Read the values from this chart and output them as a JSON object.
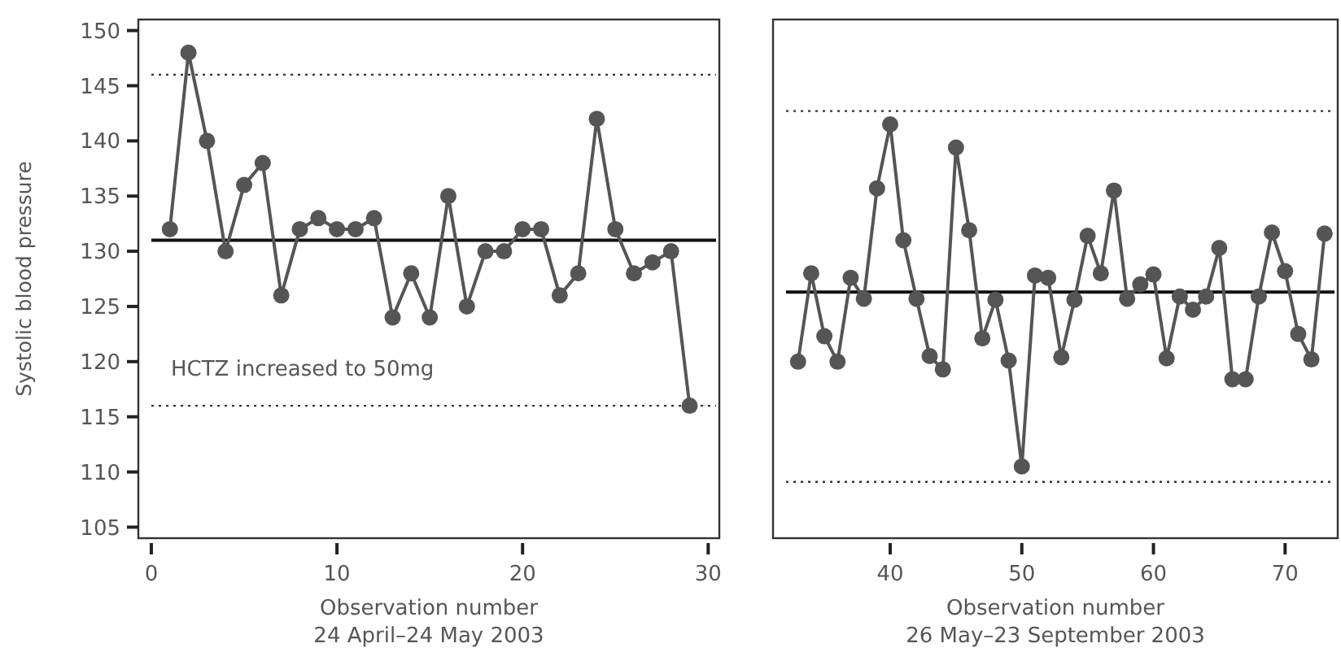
{
  "chart_data": [
    {
      "type": "line",
      "xlabel": "Observation number\n24 April–24 May 2003",
      "ylabel": "Systolic blood pressure",
      "marker": "circle",
      "line_style": "solid",
      "grid": false,
      "x": [
        1,
        2,
        3,
        4,
        5,
        6,
        7,
        8,
        9,
        10,
        11,
        12,
        13,
        14,
        15,
        16,
        17,
        18,
        19,
        20,
        21,
        22,
        23,
        24,
        25,
        26,
        27,
        28,
        29
      ],
      "series": [
        {
          "color": "#555555",
          "values": [
            132,
            148,
            140,
            130,
            136,
            138,
            126,
            132,
            133,
            132,
            132,
            133,
            124,
            128,
            124,
            135,
            125,
            130,
            130,
            132,
            132,
            126,
            128,
            142,
            132,
            128,
            129,
            130,
            116
          ]
        }
      ],
      "xlim": [
        -0.7,
        30.6
      ],
      "ylim": [
        104,
        151
      ],
      "xticks": [
        0,
        10,
        20,
        30
      ],
      "yticks": [
        105,
        110,
        115,
        120,
        125,
        130,
        135,
        140,
        145,
        150
      ],
      "ref_lines": [
        {
          "axis": "y",
          "value": 131,
          "color": "#111111",
          "line_style": "solid"
        },
        {
          "axis": "y",
          "value": 146,
          "color": "#333333",
          "line_style": "dotted"
        },
        {
          "axis": "y",
          "value": 116,
          "color": "#333333",
          "line_style": "dotted"
        }
      ],
      "annotations": [
        "HCTZ increased to 50mg"
      ]
    },
    {
      "type": "line",
      "xlabel": "Observation number\n26 May–23 September 2003",
      "marker": "circle",
      "line_style": "solid",
      "grid": false,
      "tick_labels": "x",
      "x": [
        33,
        34,
        35,
        36,
        37,
        38,
        39,
        40,
        41,
        42,
        43,
        44,
        45,
        46,
        47,
        48,
        49,
        50,
        51,
        52,
        53,
        54,
        55,
        56,
        57,
        58,
        59,
        60,
        61,
        62,
        63,
        64,
        65,
        66,
        67,
        68,
        69,
        70,
        71,
        72,
        73
      ],
      "series": [
        {
          "color": "#555555",
          "values": [
            120,
            128,
            122.3,
            120,
            127.6,
            125.7,
            135.7,
            141.5,
            131,
            125.7,
            120.5,
            119.3,
            139.4,
            131.9,
            122.1,
            125.6,
            120.1,
            110.5,
            127.8,
            127.6,
            120.4,
            125.6,
            131.4,
            128,
            135.5,
            125.7,
            127,
            127.9,
            120.3,
            125.9,
            124.7,
            125.9,
            130.3,
            118.4,
            118.4,
            125.9,
            131.7,
            128.2,
            122.5,
            120.2,
            131.6
          ]
        }
      ],
      "xlim": [
        31.1,
        74
      ],
      "ylim": [
        104,
        151
      ],
      "xticks": [
        40,
        50,
        60,
        70
      ],
      "ref_lines": [
        {
          "axis": "y",
          "value": 126.3,
          "color": "#111111",
          "line_style": "solid"
        },
        {
          "axis": "y",
          "value": 142.7,
          "color": "#333333",
          "line_style": "dotted"
        },
        {
          "axis": "y",
          "value": 109.1,
          "color": "#333333",
          "line_style": "dotted"
        }
      ]
    }
  ]
}
